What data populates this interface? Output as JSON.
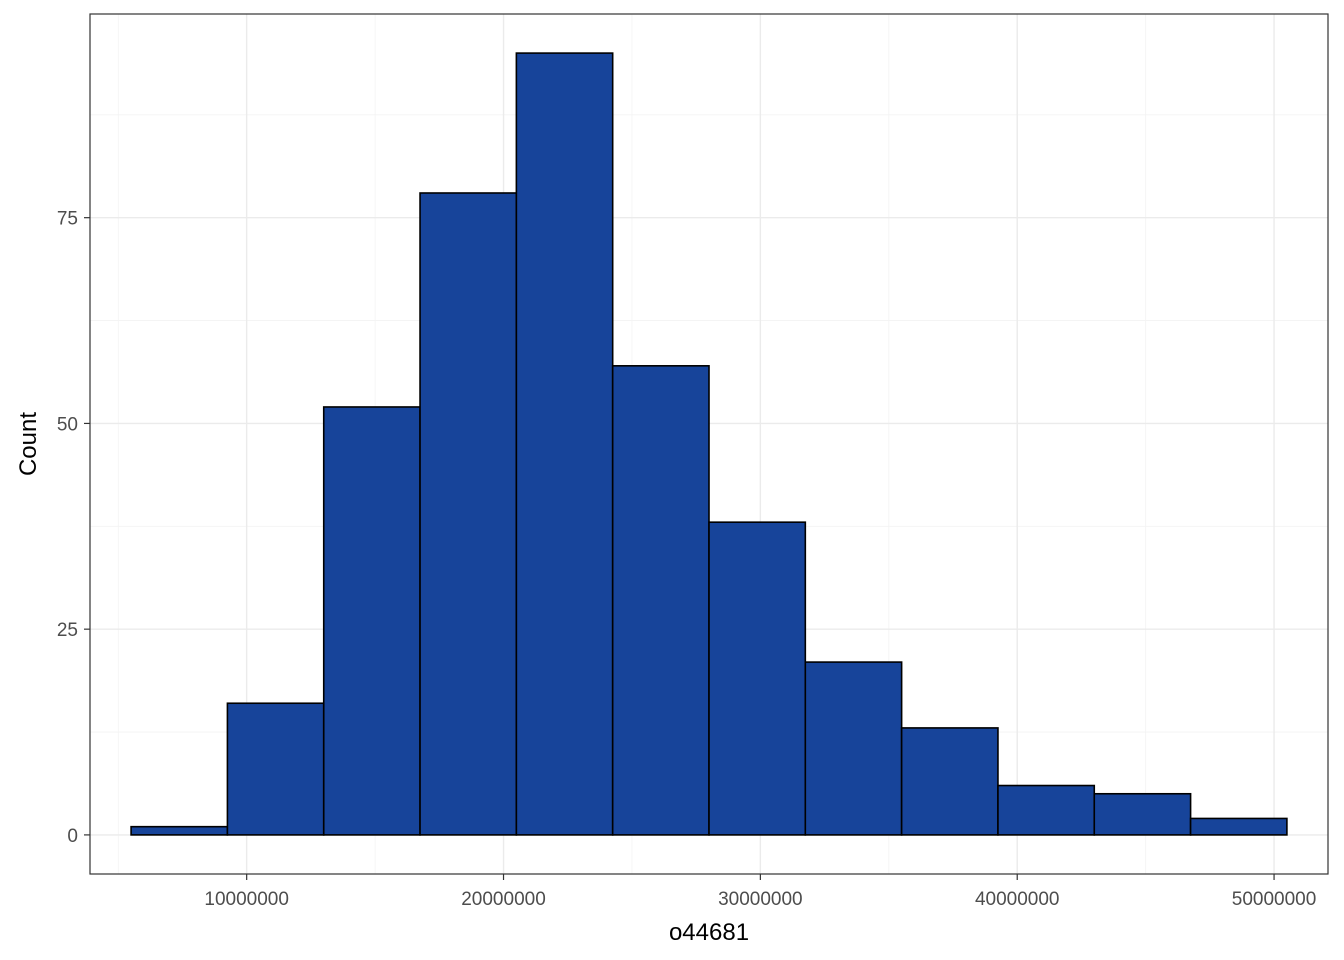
{
  "chart_data": {
    "type": "bar",
    "subtype": "histogram",
    "xlabel": "o44681",
    "ylabel": "Count",
    "bins": [
      {
        "start": 5500000,
        "end": 9250000,
        "count": 1
      },
      {
        "start": 9250000,
        "end": 13000000,
        "count": 16
      },
      {
        "start": 13000000,
        "end": 16750000,
        "count": 52
      },
      {
        "start": 16750000,
        "end": 20500000,
        "count": 78
      },
      {
        "start": 20500000,
        "end": 24250000,
        "count": 95
      },
      {
        "start": 24250000,
        "end": 28000000,
        "count": 57
      },
      {
        "start": 28000000,
        "end": 31750000,
        "count": 38
      },
      {
        "start": 31750000,
        "end": 35500000,
        "count": 21
      },
      {
        "start": 35500000,
        "end": 39250000,
        "count": 13
      },
      {
        "start": 39250000,
        "end": 43000000,
        "count": 6
      },
      {
        "start": 43000000,
        "end": 46750000,
        "count": 5
      },
      {
        "start": 46750000,
        "end": 50500000,
        "count": 2
      }
    ],
    "xlim": [
      3900000,
      52100000
    ],
    "ylim": [
      -4.75,
      99.75
    ],
    "x_ticks": [
      10000000,
      20000000,
      30000000,
      40000000,
      50000000
    ],
    "x_tick_labels": [
      "10000000",
      "20000000",
      "30000000",
      "40000000",
      "50000000"
    ],
    "x_minor_ticks": [
      5000000,
      15000000,
      25000000,
      35000000,
      45000000
    ],
    "y_ticks": [
      0,
      25,
      50,
      75
    ],
    "y_tick_labels": [
      "0",
      "25",
      "50",
      "75"
    ],
    "y_minor_ticks": [
      12.5,
      37.5,
      62.5,
      87.5
    ],
    "grid": true,
    "fill_color": "#17449a",
    "border_color": "#000000"
  }
}
